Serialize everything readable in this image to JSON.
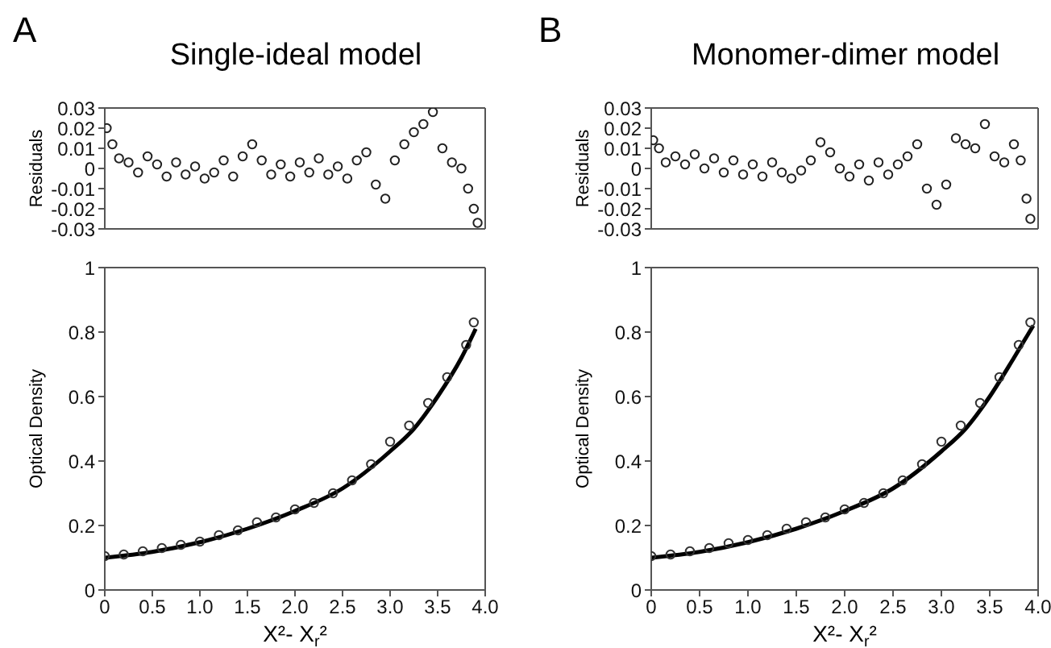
{
  "chart_data": [
    {
      "type": "scatter",
      "title": "Single-ideal model",
      "annotations": [
        "A"
      ],
      "ylabel": "Residuals",
      "xlim": [
        0,
        4
      ],
      "ylim": [
        -0.03,
        0.03
      ],
      "yticks": [
        0.03,
        0.02,
        0.01,
        0,
        -0.01,
        -0.02,
        -0.03
      ],
      "tick_labels": "y",
      "series": [
        {
          "color": "#222222",
          "marker": "circle",
          "x": [
            0.02,
            0.08,
            0.15,
            0.25,
            0.35,
            0.45,
            0.55,
            0.65,
            0.75,
            0.85,
            0.95,
            1.05,
            1.15,
            1.25,
            1.35,
            1.45,
            1.55,
            1.65,
            1.75,
            1.85,
            1.95,
            2.05,
            2.15,
            2.25,
            2.35,
            2.45,
            2.55,
            2.65,
            2.75,
            2.85,
            2.95,
            3.05,
            3.15,
            3.25,
            3.35,
            3.45,
            3.55,
            3.65,
            3.75,
            3.82,
            3.88,
            3.92
          ],
          "values": [
            0.02,
            0.012,
            0.005,
            0.003,
            -0.002,
            0.006,
            0.002,
            -0.004,
            0.003,
            -0.003,
            0.001,
            -0.005,
            -0.002,
            0.004,
            -0.004,
            0.006,
            0.012,
            0.004,
            -0.003,
            0.002,
            -0.004,
            0.003,
            -0.002,
            0.005,
            -0.003,
            0.001,
            -0.005,
            0.004,
            0.008,
            -0.008,
            -0.015,
            0.004,
            0.012,
            0.018,
            0.022,
            0.028,
            0.01,
            0.003,
            0,
            -0.01,
            -0.02,
            -0.027
          ]
        }
      ]
    },
    {
      "type": "scatter",
      "ylabel": "Optical Density",
      "xlabel": "X²- X$_{r}$²",
      "xlim": [
        0,
        4
      ],
      "ylim": [
        0,
        1
      ],
      "yticks": [
        0,
        0.2,
        0.4,
        0.6,
        0.8,
        1
      ],
      "xticks": [
        0,
        0.5,
        {
          "value": 1,
          "label": "1.0"
        },
        1.5,
        {
          "value": 2,
          "label": "2.0"
        },
        2.5,
        {
          "value": 3,
          "label": "3.0"
        },
        3.5,
        {
          "value": 4,
          "label": "4.0"
        }
      ],
      "series": [
        {
          "color": "#333333",
          "marker": "circle",
          "x": [
            0,
            0.2,
            0.4,
            0.6,
            0.8,
            1.0,
            1.2,
            1.4,
            1.6,
            1.8,
            2.0,
            2.2,
            2.4,
            2.6,
            2.8,
            3.0,
            3.2,
            3.4,
            3.6,
            3.8,
            3.88
          ],
          "values": [
            0.105,
            0.11,
            0.12,
            0.13,
            0.14,
            0.15,
            0.17,
            0.185,
            0.21,
            0.225,
            0.25,
            0.27,
            0.3,
            0.34,
            0.39,
            0.46,
            0.51,
            0.58,
            0.66,
            0.76,
            0.83
          ]
        },
        {
          "type": "line",
          "color": "#000000",
          "x": [
            0,
            0.5,
            1.0,
            1.5,
            2.0,
            2.5,
            3.0,
            3.25,
            3.5,
            3.75,
            3.9
          ],
          "values": [
            0.1,
            0.118,
            0.148,
            0.19,
            0.245,
            0.315,
            0.43,
            0.5,
            0.6,
            0.72,
            0.81
          ]
        }
      ]
    },
    {
      "type": "scatter",
      "title": "Monomer-dimer model",
      "annotations": [
        "B"
      ],
      "ylabel": "Residuals",
      "xlim": [
        0,
        4
      ],
      "ylim": [
        -0.03,
        0.03
      ],
      "yticks": [
        0.03,
        0.02,
        0.01,
        0,
        -0.01,
        -0.02,
        -0.03
      ],
      "tick_labels": "y",
      "series": [
        {
          "color": "#222222",
          "marker": "circle",
          "x": [
            0.02,
            0.08,
            0.15,
            0.25,
            0.35,
            0.45,
            0.55,
            0.65,
            0.75,
            0.85,
            0.95,
            1.05,
            1.15,
            1.25,
            1.35,
            1.45,
            1.55,
            1.65,
            1.75,
            1.85,
            1.95,
            2.05,
            2.15,
            2.25,
            2.35,
            2.45,
            2.55,
            2.65,
            2.75,
            2.85,
            2.95,
            3.05,
            3.15,
            3.25,
            3.35,
            3.45,
            3.55,
            3.65,
            3.75,
            3.82,
            3.88,
            3.92
          ],
          "values": [
            0.014,
            0.01,
            0.003,
            0.006,
            0.002,
            0.007,
            0,
            0.005,
            -0.002,
            0.004,
            -0.003,
            0.002,
            -0.004,
            0.003,
            -0.002,
            -0.005,
            -0.001,
            0.004,
            0.013,
            0.008,
            0,
            -0.004,
            0.002,
            -0.006,
            0.003,
            -0.003,
            0.002,
            0.006,
            0.012,
            -0.01,
            -0.018,
            -0.008,
            0.015,
            0.012,
            0.01,
            0.022,
            0.006,
            0.003,
            0.012,
            0.004,
            -0.015,
            -0.025
          ]
        }
      ]
    },
    {
      "type": "scatter",
      "ylabel": "Optical Density",
      "xlabel": "X²- X$_{r}$²",
      "xlim": [
        0,
        4
      ],
      "ylim": [
        0,
        1
      ],
      "yticks": [
        0,
        0.2,
        0.4,
        0.6,
        0.8,
        1
      ],
      "xticks": [
        0,
        0.5,
        {
          "value": 1,
          "label": "1.0"
        },
        1.5,
        {
          "value": 2,
          "label": "2.0"
        },
        2.5,
        {
          "value": 3,
          "label": "3.0"
        },
        3.5,
        {
          "value": 4,
          "label": "4.0"
        }
      ],
      "series": [
        {
          "color": "#333333",
          "marker": "circle",
          "x": [
            0,
            0.2,
            0.4,
            0.6,
            0.8,
            1.0,
            1.2,
            1.4,
            1.6,
            1.8,
            2.0,
            2.2,
            2.4,
            2.6,
            2.8,
            3.0,
            3.2,
            3.4,
            3.6,
            3.8,
            3.92
          ],
          "values": [
            0.105,
            0.11,
            0.12,
            0.13,
            0.145,
            0.155,
            0.17,
            0.19,
            0.21,
            0.225,
            0.25,
            0.27,
            0.3,
            0.34,
            0.39,
            0.46,
            0.51,
            0.58,
            0.66,
            0.76,
            0.83
          ]
        },
        {
          "type": "line",
          "color": "#000000",
          "x": [
            0,
            0.5,
            1.0,
            1.5,
            2.0,
            2.5,
            3.0,
            3.25,
            3.5,
            3.75,
            3.95
          ],
          "values": [
            0.1,
            0.118,
            0.148,
            0.19,
            0.245,
            0.315,
            0.43,
            0.5,
            0.6,
            0.72,
            0.82
          ]
        }
      ]
    }
  ]
}
